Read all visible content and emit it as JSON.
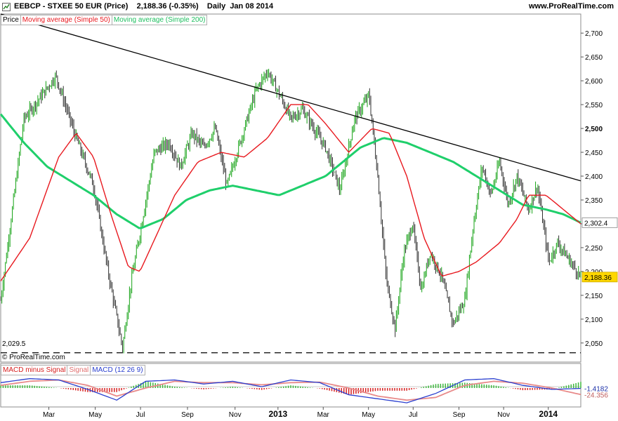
{
  "header": {
    "title": "EEBCP - STXEE 50 EUR (Price)    2,188.36 (-0.35%)    Daily  Jan 08 2014",
    "site": "www.ProRealTime.com"
  },
  "legend": {
    "price": "Price",
    "ma50": "Moving average (Simple 50)",
    "ma200": "Moving average (Simple 200)"
  },
  "macd_legend": {
    "histogram": "MACD minus Signal",
    "signal": "Signal",
    "macd": "MACD (12 26 9)"
  },
  "support_label": "2,029.5",
  "copyright": "© ProRealTime.com",
  "colors": {
    "price": "#16a316",
    "ma50": "#e8191f",
    "ma200": "#1fcf6b",
    "trendline": "#000000",
    "last_price_tag": "#ffd700",
    "macd": "#2a3fcf",
    "signal": "#e88a8a",
    "hist_pos": "#3db83d",
    "hist_neg": "#d62020"
  },
  "chart_data": {
    "type": "line",
    "title": "EEBCP - STXEE 50 EUR (Price)",
    "y_axis": {
      "ticks": [
        "2,050",
        "2,100",
        "2,150",
        "2,200",
        "2,250",
        "2,300",
        "2,350",
        "2,400",
        "2,450",
        "2,500",
        "2,550",
        "2,600",
        "2,650",
        "2,700"
      ],
      "ylim": [
        2010,
        2740
      ],
      "bold_tick": "2,500"
    },
    "x_axis": {
      "tick_labels": [
        "Mar",
        "May",
        "Jul",
        "Sep",
        "Nov",
        "2013",
        "Mar",
        "May",
        "Jul",
        "Sep",
        "Nov",
        "2014"
      ],
      "bold_labels": [
        "2013",
        "2014"
      ]
    },
    "price_tags": [
      {
        "label": "2,302.4",
        "value": 2302.4,
        "style": "ma"
      },
      {
        "label": "2,188.36",
        "value": 2188.36,
        "style": "last"
      }
    ],
    "support_level": 2029.5,
    "series": [
      {
        "name": "Price",
        "x": [
          0.0,
          0.04,
          0.065,
          0.095,
          0.13,
          0.16,
          0.185,
          0.21,
          0.225,
          0.24,
          0.265,
          0.29,
          0.31,
          0.33,
          0.35,
          0.37,
          0.39,
          0.42,
          0.44,
          0.46,
          0.485,
          0.5,
          0.52,
          0.54,
          0.56,
          0.585,
          0.61,
          0.635,
          0.65,
          0.665,
          0.68,
          0.695,
          0.71,
          0.725,
          0.74,
          0.76,
          0.78,
          0.8,
          0.815,
          0.83,
          0.845,
          0.86,
          0.875,
          0.89,
          0.91,
          0.925,
          0.945,
          0.96,
          1.0
        ],
        "values": [
          2140,
          2520,
          2560,
          2610,
          2480,
          2380,
          2200,
          2040,
          2180,
          2280,
          2450,
          2470,
          2420,
          2490,
          2460,
          2500,
          2380,
          2500,
          2580,
          2620,
          2560,
          2520,
          2540,
          2500,
          2460,
          2370,
          2520,
          2570,
          2400,
          2180,
          2080,
          2240,
          2300,
          2160,
          2240,
          2190,
          2090,
          2140,
          2300,
          2420,
          2360,
          2430,
          2340,
          2400,
          2330,
          2380,
          2220,
          2260,
          2188.36
        ]
      },
      {
        "name": "Moving average (Simple 50)",
        "x": [
          0.0,
          0.05,
          0.1,
          0.13,
          0.16,
          0.19,
          0.22,
          0.24,
          0.27,
          0.3,
          0.34,
          0.38,
          0.42,
          0.46,
          0.5,
          0.53,
          0.56,
          0.6,
          0.64,
          0.67,
          0.7,
          0.73,
          0.76,
          0.79,
          0.82,
          0.86,
          0.89,
          0.91,
          0.94,
          0.96,
          0.98,
          1.0
        ],
        "values": [
          2180,
          2270,
          2440,
          2490,
          2440,
          2320,
          2210,
          2200,
          2280,
          2360,
          2430,
          2450,
          2440,
          2480,
          2550,
          2550,
          2510,
          2450,
          2500,
          2490,
          2400,
          2270,
          2190,
          2200,
          2220,
          2260,
          2310,
          2360,
          2360,
          2340,
          2320,
          2300
        ]
      },
      {
        "name": "Moving average (Simple 200)",
        "x": [
          0.0,
          0.04,
          0.08,
          0.12,
          0.16,
          0.2,
          0.24,
          0.28,
          0.32,
          0.36,
          0.4,
          0.44,
          0.48,
          0.52,
          0.56,
          0.6,
          0.62,
          0.64,
          0.66,
          0.7,
          0.74,
          0.78,
          0.82,
          0.86,
          0.9,
          0.94,
          0.97,
          1.0
        ],
        "values": [
          2530,
          2470,
          2420,
          2390,
          2360,
          2320,
          2290,
          2310,
          2350,
          2370,
          2380,
          2370,
          2360,
          2380,
          2400,
          2440,
          2460,
          2470,
          2480,
          2470,
          2450,
          2430,
          2400,
          2370,
          2340,
          2330,
          2320,
          2302.4
        ]
      }
    ],
    "trendline": {
      "x": [
        0.0,
        1.0
      ],
      "values": [
        2740,
        2390
      ]
    },
    "macd_panel": {
      "tags": [
        "-1.4182",
        "-24.356"
      ],
      "series": [
        {
          "name": "MACD (12 26 9)",
          "x": [
            0.0,
            0.05,
            0.1,
            0.15,
            0.2,
            0.25,
            0.3,
            0.35,
            0.4,
            0.45,
            0.5,
            0.55,
            0.6,
            0.65,
            0.7,
            0.75,
            0.8,
            0.85,
            0.9,
            0.95,
            1.0
          ],
          "values": [
            20,
            35,
            30,
            -5,
            -45,
            25,
            30,
            15,
            25,
            5,
            30,
            20,
            -25,
            -40,
            -55,
            -20,
            30,
            35,
            10,
            -5,
            -1.4182
          ]
        },
        {
          "name": "Signal",
          "x": [
            0.0,
            0.05,
            0.1,
            0.15,
            0.2,
            0.25,
            0.3,
            0.35,
            0.4,
            0.45,
            0.5,
            0.55,
            0.6,
            0.65,
            0.7,
            0.75,
            0.8,
            0.85,
            0.9,
            0.95,
            1.0
          ],
          "values": [
            10,
            25,
            30,
            10,
            -30,
            0,
            25,
            20,
            20,
            12,
            20,
            22,
            0,
            -30,
            -45,
            -35,
            10,
            25,
            18,
            0,
            -24.356
          ]
        }
      ]
    }
  }
}
